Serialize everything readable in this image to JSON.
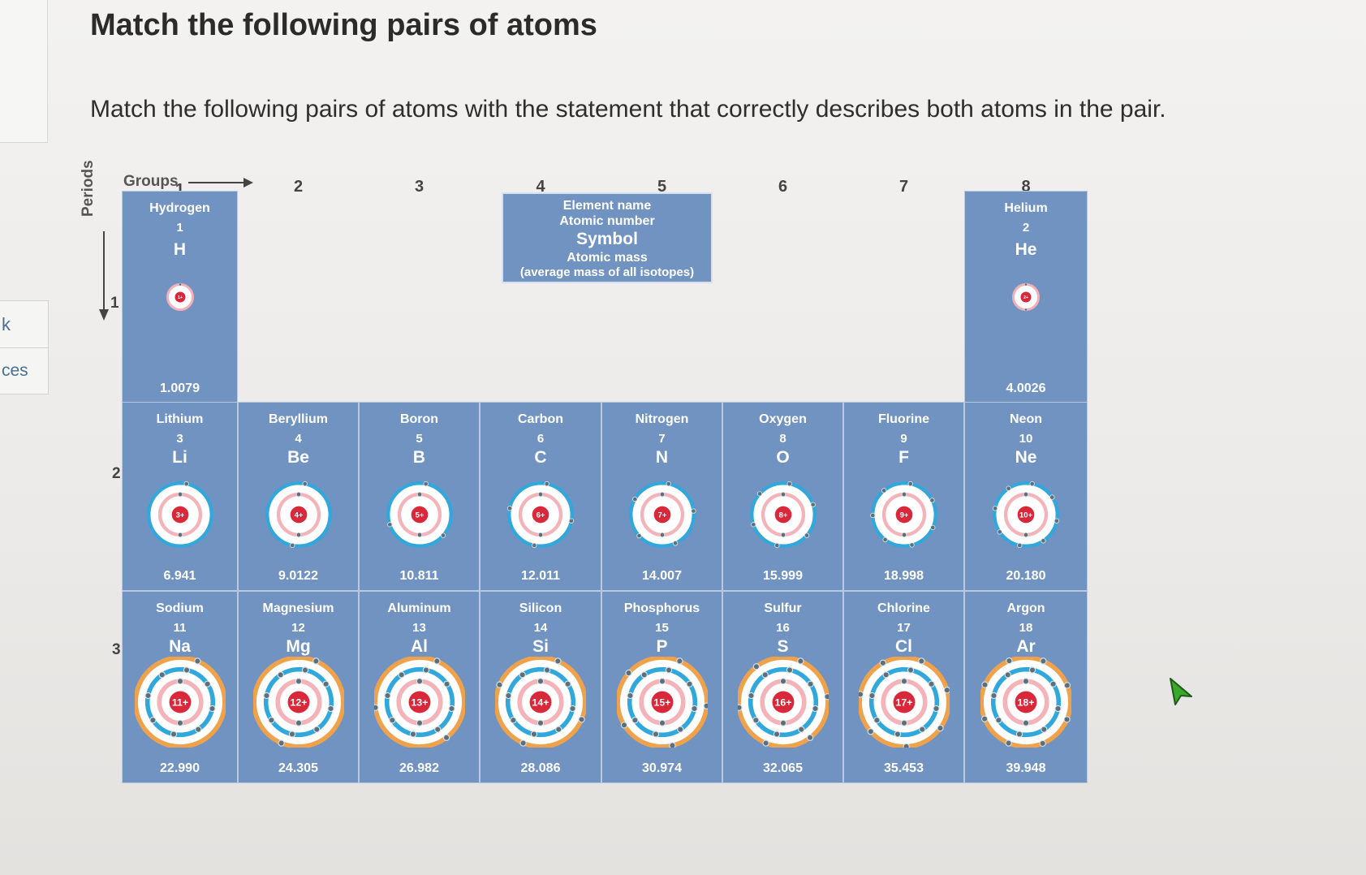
{
  "sidebar": {
    "tab1_text": "k",
    "tab2_text": "ces"
  },
  "question": {
    "title": "Match the following pairs of atoms",
    "prompt": "Match the following pairs of atoms with the statement that correctly describes both atoms in the pair."
  },
  "figure": {
    "groups_label": "Groups",
    "periods_label": "Periods",
    "groups": [
      "1",
      "2",
      "3",
      "4",
      "5",
      "6",
      "7",
      "8"
    ],
    "periods": [
      "1",
      "2",
      "3"
    ],
    "key": {
      "line1": "Element name",
      "line2": "Atomic number",
      "line3": "Symbol",
      "line4": "Atomic mass",
      "line5": "(average mass of all isotopes)"
    },
    "elements": [
      {
        "name": "Hydrogen",
        "number": "1",
        "symbol": "H",
        "mass": "1.0079"
      },
      {
        "name": "Helium",
        "number": "2",
        "symbol": "He",
        "mass": "4.0026"
      },
      {
        "name": "Lithium",
        "number": "3",
        "symbol": "Li",
        "mass": "6.941"
      },
      {
        "name": "Beryllium",
        "number": "4",
        "symbol": "Be",
        "mass": "9.0122"
      },
      {
        "name": "Boron",
        "number": "5",
        "symbol": "B",
        "mass": "10.811"
      },
      {
        "name": "Carbon",
        "number": "6",
        "symbol": "C",
        "mass": "12.011"
      },
      {
        "name": "Nitrogen",
        "number": "7",
        "symbol": "N",
        "mass": "14.007"
      },
      {
        "name": "Oxygen",
        "number": "8",
        "symbol": "O",
        "mass": "15.999"
      },
      {
        "name": "Fluorine",
        "number": "9",
        "symbol": "F",
        "mass": "18.998"
      },
      {
        "name": "Neon",
        "number": "10",
        "symbol": "Ne",
        "mass": "20.180"
      },
      {
        "name": "Sodium",
        "number": "11",
        "symbol": "Na",
        "mass": "22.990"
      },
      {
        "name": "Magnesium",
        "number": "12",
        "symbol": "Mg",
        "mass": "24.305"
      },
      {
        "name": "Aluminum",
        "number": "13",
        "symbol": "Al",
        "mass": "26.982"
      },
      {
        "name": "Silicon",
        "number": "14",
        "symbol": "Si",
        "mass": "28.086"
      },
      {
        "name": "Phosphorus",
        "number": "15",
        "symbol": "P",
        "mass": "30.974"
      },
      {
        "name": "Sulfur",
        "number": "16",
        "symbol": "S",
        "mass": "32.065"
      },
      {
        "name": "Chlorine",
        "number": "17",
        "symbol": "Cl",
        "mass": "35.453"
      },
      {
        "name": "Argon",
        "number": "18",
        "symbol": "Ar",
        "mass": "39.948"
      }
    ]
  },
  "colors": {
    "cell": "#7193c1",
    "nucleus": "#d8283a",
    "shell_inner": "#2aa7d8",
    "shell_outer": "#f0a24a"
  }
}
